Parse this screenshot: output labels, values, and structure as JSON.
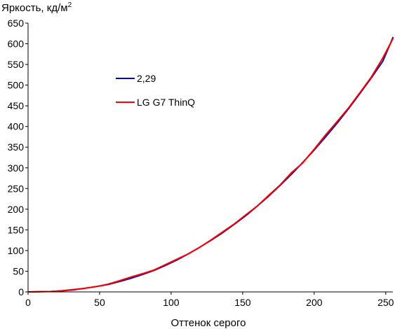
{
  "chart_data": {
    "type": "line",
    "title": "",
    "ylabel": "Яркость, кд/м",
    "ylabel_sup": "2",
    "xlabel": "Оттенок серого",
    "xlim": [
      0,
      255
    ],
    "ylim": [
      0,
      650
    ],
    "x_ticks": [
      0,
      50,
      100,
      150,
      200,
      250
    ],
    "y_ticks": [
      0,
      50,
      100,
      150,
      200,
      250,
      300,
      350,
      400,
      450,
      500,
      550,
      600,
      650
    ],
    "grid": false,
    "legend_position": "upper-left",
    "series": [
      {
        "name": "2,29",
        "color": "#0000c0",
        "x": [
          0,
          16,
          24,
          32,
          40,
          48,
          56,
          64,
          72,
          80,
          88,
          96,
          104,
          112,
          120,
          128,
          136,
          144,
          152,
          160,
          168,
          176,
          184,
          192,
          200,
          208,
          216,
          224,
          232,
          240,
          248,
          255
        ],
        "y": [
          0,
          1,
          2.5,
          5,
          9,
          13,
          18,
          25,
          33,
          42,
          52,
          64,
          77,
          92,
          108,
          125,
          143,
          163,
          184,
          207,
          231,
          257,
          284,
          313,
          343,
          375,
          408,
          443,
          480,
          518,
          558,
          615
        ]
      },
      {
        "name": "LG G7 ThinQ",
        "color": "#ff0000",
        "x": [
          0,
          16,
          24,
          32,
          40,
          48,
          56,
          64,
          72,
          80,
          88,
          96,
          104,
          112,
          120,
          128,
          136,
          144,
          152,
          160,
          168,
          176,
          184,
          192,
          200,
          208,
          216,
          224,
          232,
          240,
          248,
          255
        ],
        "y": [
          0,
          1,
          3,
          6,
          9,
          13,
          19,
          27,
          36,
          44,
          53,
          66,
          79,
          92,
          108,
          126,
          145,
          164,
          186,
          207,
          233,
          258,
          288,
          312,
          345,
          380,
          412,
          445,
          482,
          520,
          566,
          612
        ]
      }
    ]
  }
}
